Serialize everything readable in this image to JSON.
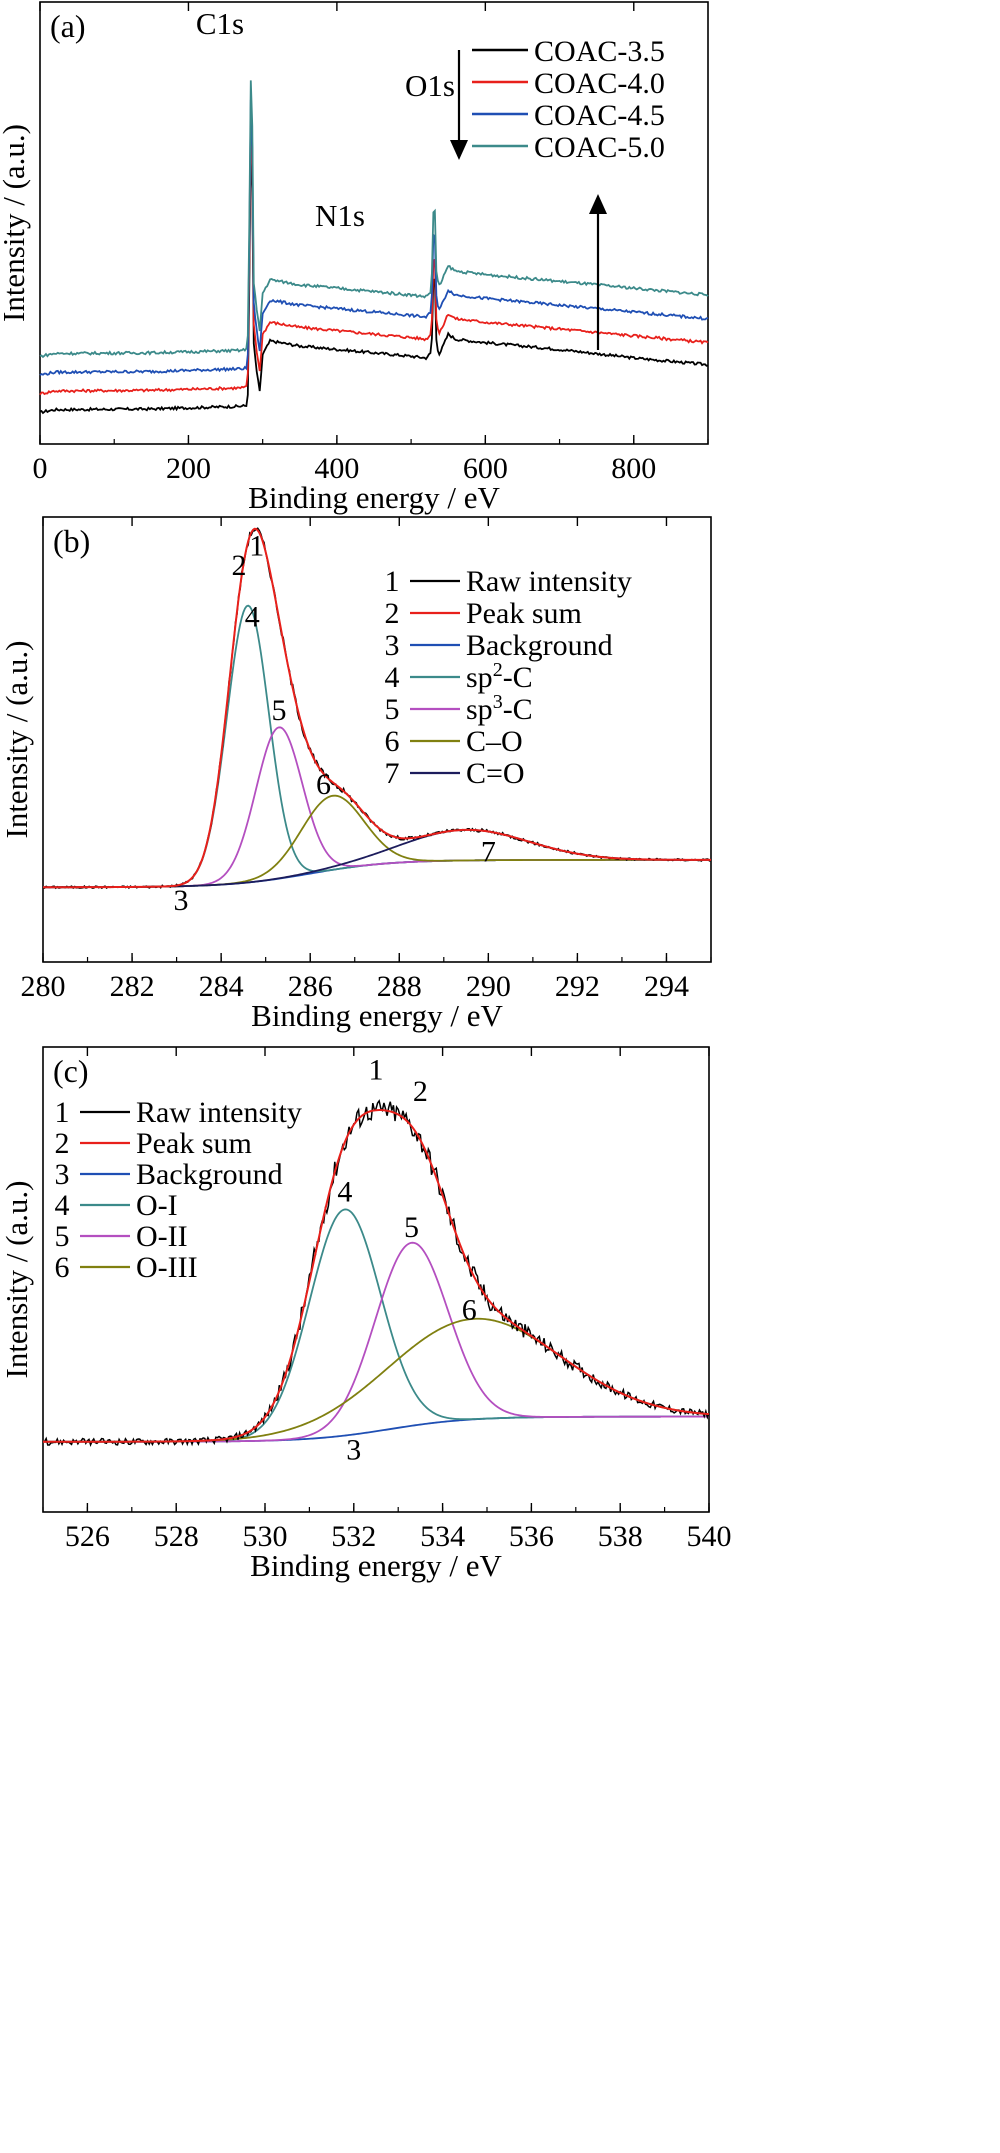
{
  "chart_data": [
    {
      "panel": "(a)",
      "type": "line",
      "xlabel": "Binding energy / eV",
      "ylabel": "Intensity / (a.u.)",
      "xlim": [
        0,
        900
      ],
      "xticks": [
        0,
        200,
        400,
        600,
        800
      ],
      "grid": false,
      "legend_position": "top-right",
      "series": [
        {
          "name": "COAC-3.5",
          "color": "#000000",
          "x": [
            0,
            20,
            150,
            270,
            279,
            281,
            283,
            285,
            286,
            288,
            292,
            296,
            300,
            310,
            350,
            400,
            450,
            500,
            520,
            527,
            529,
            530,
            531,
            532,
            533,
            535,
            537,
            540,
            550,
            560,
            600,
            700,
            800,
            900
          ],
          "y": [
            0.04,
            0.048,
            0.05,
            0.058,
            0.06,
            0.13,
            0.7,
            0.97,
            0.7,
            0.24,
            0.16,
            0.1,
            0.21,
            0.25,
            0.235,
            0.225,
            0.215,
            0.205,
            0.2,
            0.215,
            0.3,
            0.43,
            0.5,
            0.43,
            0.27,
            0.24,
            0.21,
            0.22,
            0.27,
            0.255,
            0.245,
            0.225,
            0.2,
            0.18
          ]
        },
        {
          "name": "COAC-4.0",
          "color": "#e8201b",
          "x": [
            0,
            20,
            150,
            270,
            279,
            281,
            283,
            285,
            286,
            288,
            292,
            296,
            300,
            310,
            350,
            400,
            450,
            500,
            520,
            527,
            529,
            530,
            531,
            532,
            533,
            535,
            537,
            540,
            550,
            560,
            600,
            700,
            800,
            900
          ],
          "y": [
            0.095,
            0.103,
            0.105,
            0.112,
            0.115,
            0.19,
            0.76,
            1.03,
            0.76,
            0.3,
            0.22,
            0.16,
            0.27,
            0.305,
            0.29,
            0.28,
            0.27,
            0.26,
            0.255,
            0.27,
            0.36,
            0.49,
            0.56,
            0.49,
            0.33,
            0.3,
            0.27,
            0.28,
            0.33,
            0.315,
            0.305,
            0.285,
            0.265,
            0.245
          ]
        },
        {
          "name": "COAC-4.5",
          "color": "#1f4fb4",
          "x": [
            0,
            20,
            150,
            270,
            279,
            281,
            283,
            285,
            286,
            288,
            292,
            296,
            300,
            310,
            350,
            400,
            450,
            500,
            520,
            527,
            529,
            530,
            531,
            532,
            533,
            535,
            537,
            540,
            550,
            560,
            600,
            700,
            800,
            900
          ],
          "y": [
            0.15,
            0.158,
            0.16,
            0.168,
            0.17,
            0.25,
            0.82,
            1.09,
            0.82,
            0.36,
            0.28,
            0.22,
            0.33,
            0.37,
            0.355,
            0.345,
            0.335,
            0.325,
            0.32,
            0.335,
            0.43,
            0.56,
            0.63,
            0.56,
            0.4,
            0.37,
            0.34,
            0.35,
            0.4,
            0.385,
            0.375,
            0.355,
            0.335,
            0.315
          ]
        },
        {
          "name": "COAC-5.0",
          "color": "#3c8a8a",
          "x": [
            0,
            20,
            150,
            270,
            279,
            281,
            283,
            285,
            286,
            288,
            292,
            296,
            300,
            310,
            350,
            400,
            450,
            500,
            520,
            527,
            529,
            530,
            531,
            532,
            533,
            535,
            537,
            540,
            550,
            560,
            600,
            700,
            800,
            900
          ],
          "y": [
            0.205,
            0.213,
            0.215,
            0.222,
            0.225,
            0.31,
            0.88,
            1.15,
            0.88,
            0.42,
            0.34,
            0.28,
            0.39,
            0.43,
            0.415,
            0.405,
            0.395,
            0.385,
            0.38,
            0.395,
            0.5,
            0.63,
            0.71,
            0.63,
            0.47,
            0.44,
            0.41,
            0.42,
            0.47,
            0.455,
            0.445,
            0.425,
            0.405,
            0.385
          ]
        }
      ],
      "annotations": [
        {
          "text": "C1s",
          "x": 285
        },
        {
          "text": "N1s",
          "x": 400
        },
        {
          "text": "O1s",
          "x": 532
        }
      ],
      "panel_label": "(a)"
    },
    {
      "panel": "(b)",
      "type": "line",
      "xlabel": "Binding energy / eV",
      "ylabel": "Intensity / (a.u.)",
      "xlim": [
        280,
        295
      ],
      "xticks": [
        280,
        282,
        284,
        286,
        288,
        290,
        292,
        294
      ],
      "grid": false,
      "legend_position": "top-right",
      "legend": [
        {
          "num": "1",
          "label": "Raw intensity",
          "color": "#000000"
        },
        {
          "num": "2",
          "label": "Peak sum",
          "color": "#e8201b"
        },
        {
          "num": "3",
          "label": "Background",
          "color": "#1f4fb4"
        },
        {
          "num": "4",
          "label_main": "sp",
          "label_sup": "2",
          "label_rest": "-C",
          "color": "#3c8a8a"
        },
        {
          "num": "5",
          "label_main": "sp",
          "label_sup": "3",
          "label_rest": "-C",
          "color": "#b44fc0"
        },
        {
          "num": "6",
          "label": "C–O",
          "color": "#808010"
        },
        {
          "num": "7",
          "label": "C=O",
          "color": "#1c1c5c"
        }
      ],
      "background": {
        "low": 0.05,
        "high": 0.135,
        "center": 286.0,
        "width": 0.9
      },
      "components": [
        {
          "name": "sp2-C",
          "center": 284.6,
          "amp": 0.86,
          "sigma": 0.47,
          "color": "#3c8a8a"
        },
        {
          "name": "sp3-C",
          "center": 285.3,
          "amp": 0.47,
          "sigma": 0.52,
          "color": "#b44fc0"
        },
        {
          "name": "C–O",
          "center": 286.5,
          "amp": 0.23,
          "sigma": 0.7,
          "color": "#808010"
        },
        {
          "name": "C=O",
          "center": 289.5,
          "amp": 0.095,
          "sigma": 1.4,
          "color": "#1c1c5c"
        }
      ],
      "peak_labels": [
        {
          "text": "1",
          "x": 284.8,
          "y": 1.08
        },
        {
          "text": "2",
          "x": 284.4,
          "y": 1.02
        },
        {
          "text": "4",
          "x": 284.7,
          "y": 0.86
        },
        {
          "text": "5",
          "x": 285.3,
          "y": 0.57
        },
        {
          "text": "6",
          "x": 286.3,
          "y": 0.34
        },
        {
          "text": "7",
          "x": 290.0,
          "y": 0.13
        },
        {
          "text": "3",
          "x": 283.1,
          "y": -0.02
        }
      ],
      "ylim": [
        -0.12,
        1.2
      ],
      "panel_label": "(b)"
    },
    {
      "panel": "(c)",
      "type": "line",
      "xlabel": "Binding energy / eV",
      "ylabel": "Intensity / (a.u.)",
      "xlim": [
        525,
        540
      ],
      "xticks": [
        526,
        528,
        530,
        532,
        534,
        536,
        538,
        540
      ],
      "grid": false,
      "legend_position": "top-left",
      "legend": [
        {
          "num": "1",
          "label": "Raw intensity",
          "color": "#000000"
        },
        {
          "num": "2",
          "label": "Peak sum",
          "color": "#e8201b"
        },
        {
          "num": "3",
          "label": "Background",
          "color": "#1f4fb4"
        },
        {
          "num": "4",
          "label": "O-I",
          "color": "#3c8a8a"
        },
        {
          "num": "5",
          "label": "O-II",
          "color": "#b44fc0"
        },
        {
          "num": "6",
          "label": "O-III",
          "color": "#808010"
        }
      ],
      "background": {
        "low": 0.02,
        "high": 0.09,
        "center": 532.8,
        "width": 0.9
      },
      "components": [
        {
          "name": "O-I",
          "center": 531.8,
          "amp": 0.63,
          "sigma": 0.8,
          "color": "#3c8a8a"
        },
        {
          "name": "O-II",
          "center": 533.3,
          "amp": 0.51,
          "sigma": 0.82,
          "color": "#b44fc0"
        },
        {
          "name": "O-III",
          "center": 534.7,
          "amp": 0.28,
          "sigma": 1.95,
          "color": "#808010"
        }
      ],
      "peak_labels": [
        {
          "text": "1",
          "x": 532.5,
          "y": 1.03
        },
        {
          "text": "2",
          "x": 533.5,
          "y": 0.97
        },
        {
          "text": "4",
          "x": 531.8,
          "y": 0.69
        },
        {
          "text": "5",
          "x": 533.3,
          "y": 0.59
        },
        {
          "text": "6",
          "x": 534.6,
          "y": 0.36
        },
        {
          "text": "3",
          "x": 532.0,
          "y": -0.03
        }
      ],
      "ylim": [
        -0.12,
        1.12
      ],
      "panel_label": "(c)"
    }
  ]
}
